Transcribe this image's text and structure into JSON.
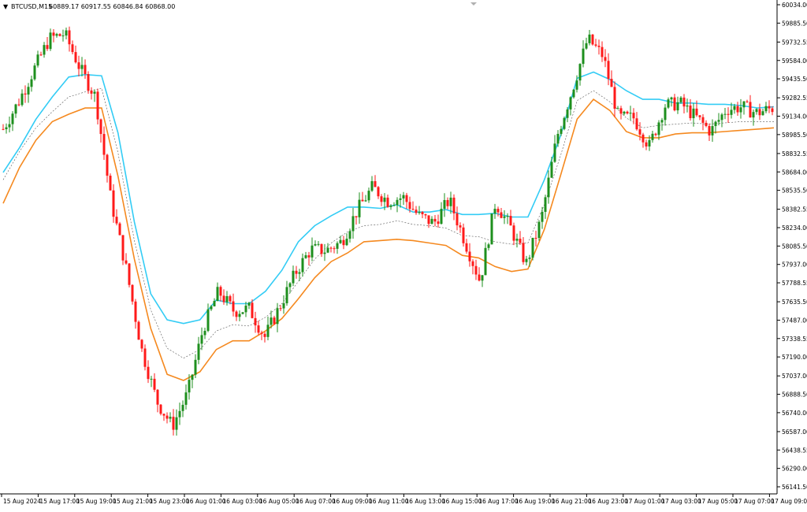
{
  "header": {
    "collapse_glyph": "▼",
    "symbol_timeframe": "BTCUSD,M15",
    "ohlc": "60889.17 60917.55 60846.84 60868.00",
    "scroll_marker_icon": "chevron-down-icon"
  },
  "colors": {
    "bull": "#1e8f1e",
    "bear": "#ff1a1a",
    "upper_band": "#33ccf5",
    "lower_band": "#f5891f",
    "middle_line": "#555555",
    "frame": "#000000",
    "price_text": "#000000"
  },
  "chart_data": {
    "type": "candlestick",
    "symbol": "BTCUSD",
    "timeframe": "M15",
    "price_axis_ticks": [
      "60034.00",
      "59885.50",
      "59732.55",
      "59584.00",
      "59435.50",
      "59282.55",
      "59134.00",
      "58985.50",
      "58832.55",
      "58684.00",
      "58535.50",
      "58382.55",
      "58234.00",
      "58085.50",
      "57937.00",
      "57788.55",
      "57635.50",
      "57487.00",
      "57338.55",
      "57190.00",
      "57037.00",
      "56888.50",
      "56740.00",
      "56587.00",
      "56438.55",
      "56290.00",
      "56141.50"
    ],
    "time_axis_labels": [
      "15 Aug 2024",
      "15 Aug 17:00",
      "15 Aug 19:00",
      "15 Aug 21:00",
      "15 Aug 23:00",
      "16 Aug 01:00",
      "16 Aug 03:00",
      "16 Aug 05:00",
      "16 Aug 07:00",
      "16 Aug 09:00",
      "16 Aug 11:00",
      "16 Aug 13:00",
      "16 Aug 15:00",
      "16 Aug 17:00",
      "16 Aug 19:00",
      "16 Aug 21:00",
      "16 Aug 23:00",
      "17 Aug 01:00",
      "17 Aug 03:00",
      "17 Aug 05:00",
      "17 Aug 07:00",
      "17 Aug 09:00"
    ],
    "y_range": [
      56141.5,
      60034
    ],
    "grid": false,
    "close_path": [
      59030,
      59250,
      59510,
      59760,
      59800,
      59520,
      59290,
      58460,
      57900,
      57250,
      56830,
      56630,
      56900,
      57420,
      57720,
      57560,
      57580,
      57350,
      57600,
      57870,
      58060,
      58050,
      58120,
      58370,
      58560,
      58450,
      58480,
      58330,
      58270,
      58460,
      58130,
      57800,
      58440,
      58230,
      57940,
      58310,
      58970,
      59350,
      59760,
      59620,
      59120,
      59120,
      58890,
      59220,
      59240,
      59130,
      59010,
      59190,
      59210,
      59160,
      59200
    ],
    "indicators": [
      {
        "kind": "upper_band",
        "values": [
          58680,
          58880,
          59110,
          59290,
          59450,
          59470,
          59460,
          59000,
          58280,
          57700,
          57490,
          57460,
          57490,
          57650,
          57620,
          57620,
          57720,
          57890,
          58120,
          58250,
          58330,
          58400,
          58400,
          58390,
          58420,
          58360,
          58360,
          58380,
          58340,
          58340,
          58350,
          58320,
          58320,
          58620,
          58980,
          59440,
          59490,
          59430,
          59340,
          59270,
          59270,
          59240,
          59240,
          59230,
          59230,
          59220,
          59200,
          59210
        ],
        "x0": 0,
        "x1": 47
      },
      {
        "kind": "middle",
        "values": [
          58620,
          58850,
          59040,
          59170,
          59290,
          59330,
          59360,
          58840,
          58130,
          57570,
          57260,
          57180,
          57250,
          57400,
          57450,
          57440,
          57510,
          57620,
          57800,
          57980,
          58110,
          58200,
          58250,
          58260,
          58290,
          58260,
          58250,
          58230,
          58170,
          58160,
          58120,
          58100,
          58110,
          58420,
          58820,
          59260,
          59340,
          59250,
          59120,
          59040,
          59060,
          59070,
          59080,
          59070,
          59080,
          59090,
          59090,
          59090
        ],
        "x0": 0,
        "x1": 47
      },
      {
        "kind": "lower_band",
        "values": [
          58430,
          58720,
          58940,
          59090,
          59150,
          59200,
          59200,
          58650,
          57980,
          57420,
          57050,
          57000,
          57070,
          57250,
          57320,
          57320,
          57400,
          57500,
          57660,
          57830,
          57960,
          58030,
          58120,
          58130,
          58140,
          58130,
          58110,
          58090,
          58010,
          57990,
          57920,
          57880,
          57900,
          58220,
          58660,
          59110,
          59270,
          59180,
          59010,
          58960,
          58960,
          58990,
          59000,
          59000,
          59010,
          59020,
          59030,
          59040
        ],
        "x0": 0,
        "x1": 47
      }
    ]
  }
}
